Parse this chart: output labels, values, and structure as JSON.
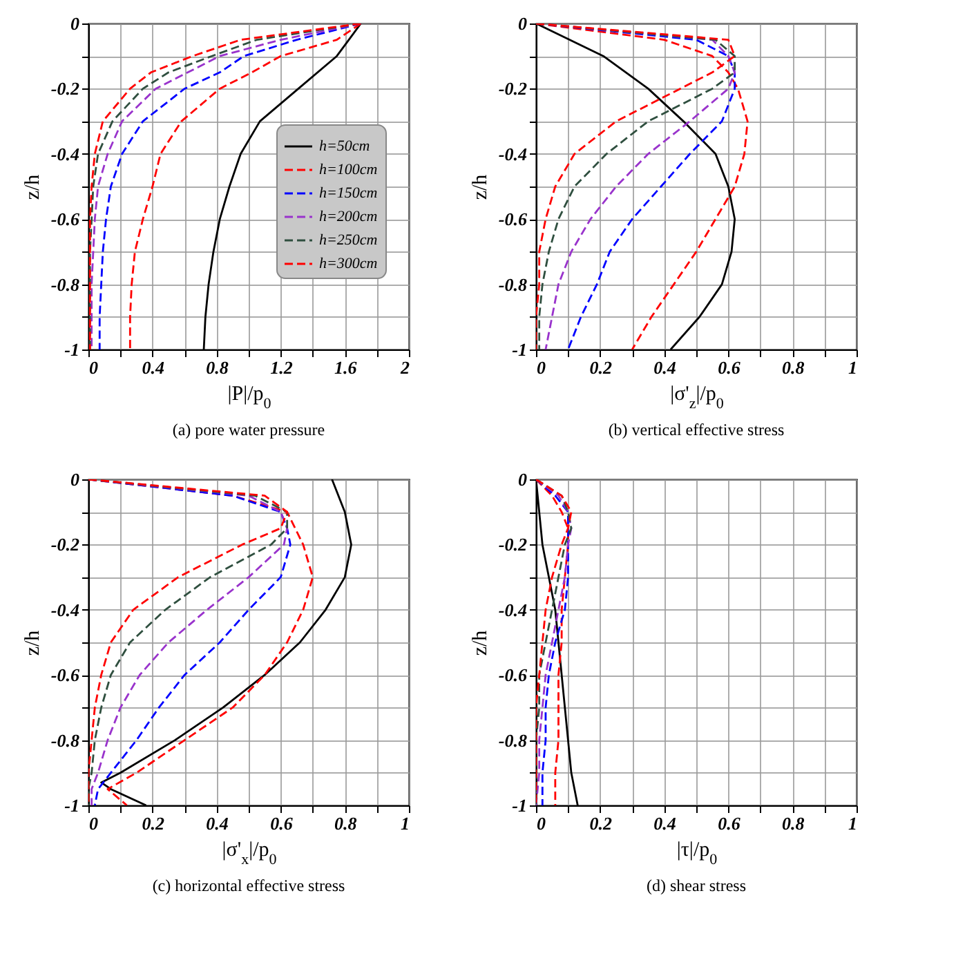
{
  "chart_data": [
    {
      "type": "line",
      "title": "(a) pore water pressure",
      "xlabel": "|P|/p$_{0}$",
      "ylabel": "z/h",
      "xlim": [
        0,
        2
      ],
      "ylim": [
        -1,
        0
      ],
      "xticks": [
        0,
        {
          "value": 0.2,
          "label": null
        },
        0.4,
        {
          "value": 0.6,
          "label": null
        },
        0.8,
        {
          "value": 1.0,
          "label": null
        },
        1.2,
        {
          "value": 1.4,
          "label": null
        },
        1.6,
        {
          "value": 1.8,
          "label": null
        },
        2
      ],
      "yticks": [
        -1,
        {
          "value": -0.9,
          "label": null
        },
        -0.8,
        {
          "value": -0.7,
          "label": null
        },
        -0.6,
        {
          "value": -0.5,
          "label": null
        },
        -0.4,
        {
          "value": -0.3,
          "label": null
        },
        -0.2,
        {
          "value": -0.1,
          "label": null
        },
        0
      ],
      "grid": true,
      "legend": "right",
      "series": [
        {
          "name": "h=50cm",
          "color": "#000000",
          "line_style": "solid",
          "x": [
            1.7,
            1.55,
            1.31,
            1.07,
            0.95,
            0.88,
            0.82,
            0.78,
            0.75,
            0.73,
            0.72
          ],
          "values": [
            0,
            -0.1,
            -0.2,
            -0.3,
            -0.4,
            -0.5,
            -0.6,
            -0.7,
            -0.8,
            -0.9,
            -1
          ]
        },
        {
          "name": "h=100cm",
          "color": "#ff0000",
          "line_style": "dashed",
          "x": [
            1.7,
            1.55,
            1.2,
            1.02,
            0.82,
            0.58,
            0.45,
            0.4,
            0.34,
            0.29,
            0.27,
            0.26,
            0.26
          ],
          "values": [
            0,
            -0.05,
            -0.1,
            -0.15,
            -0.2,
            -0.3,
            -0.4,
            -0.5,
            -0.6,
            -0.7,
            -0.8,
            -0.9,
            -1
          ]
        },
        {
          "name": "h=150cm",
          "color": "#0000ff",
          "line_style": "dashed",
          "x": [
            1.7,
            1.3,
            0.97,
            0.82,
            0.6,
            0.34,
            0.21,
            0.14,
            0.11,
            0.09,
            0.08,
            0.07,
            0.07
          ],
          "values": [
            0,
            -0.05,
            -0.1,
            -0.15,
            -0.2,
            -0.3,
            -0.4,
            -0.5,
            -0.6,
            -0.7,
            -0.8,
            -0.9,
            -1
          ]
        },
        {
          "name": "h=200cm",
          "color": "#9933cc",
          "line_style": "dashed",
          "x": [
            1.7,
            1.2,
            0.82,
            0.62,
            0.42,
            0.21,
            0.12,
            0.06,
            0.04,
            0.03,
            0.02,
            0.02,
            0.02
          ],
          "values": [
            0,
            -0.05,
            -0.1,
            -0.15,
            -0.2,
            -0.3,
            -0.4,
            -0.5,
            -0.6,
            -0.7,
            -0.8,
            -0.9,
            -1
          ]
        },
        {
          "name": "h=250cm",
          "color": "#2f4f3f",
          "line_style": "dashed",
          "x": [
            1.7,
            1.05,
            0.77,
            0.5,
            0.34,
            0.15,
            0.06,
            0.03,
            0.02,
            0.01,
            0.01,
            0.01,
            0.01
          ],
          "values": [
            0,
            -0.05,
            -0.1,
            -0.15,
            -0.2,
            -0.3,
            -0.4,
            -0.5,
            -0.6,
            -0.7,
            -0.8,
            -0.9,
            -1
          ]
        },
        {
          "name": "h=300cm",
          "color": "#ff0000",
          "line_style": "dashed",
          "x": [
            1.7,
            0.95,
            0.65,
            0.39,
            0.26,
            0.09,
            0.04,
            0.02,
            0.01,
            0.01,
            0.01,
            0.01,
            0.01
          ],
          "values": [
            0,
            -0.05,
            -0.1,
            -0.15,
            -0.2,
            -0.3,
            -0.4,
            -0.5,
            -0.6,
            -0.7,
            -0.8,
            -0.9,
            -1
          ]
        }
      ]
    },
    {
      "type": "line",
      "title": "(b) vertical effective stress",
      "xlabel": "|σ'$_{z}$|/p$_{0}$",
      "ylabel": "z/h",
      "xlim": [
        0,
        1
      ],
      "ylim": [
        -1,
        0
      ],
      "xticks": [
        0,
        {
          "value": 0.1,
          "label": null
        },
        0.2,
        {
          "value": 0.3,
          "label": null
        },
        0.4,
        {
          "value": 0.5,
          "label": null
        },
        0.6,
        {
          "value": 0.7,
          "label": null
        },
        0.8,
        {
          "value": 0.9,
          "label": null
        },
        1
      ],
      "yticks": [
        -1,
        {
          "value": -0.9,
          "label": null
        },
        -0.8,
        {
          "value": -0.7,
          "label": null
        },
        -0.6,
        {
          "value": -0.5,
          "label": null
        },
        -0.4,
        {
          "value": -0.3,
          "label": null
        },
        -0.2,
        {
          "value": -0.1,
          "label": null
        },
        0
      ],
      "grid": true,
      "legend": "bottom right",
      "series": [
        {
          "name": "h=50cm",
          "color": "#000000",
          "line_style": "solid",
          "x": [
            0,
            0.21,
            0.35,
            0.46,
            0.56,
            0.6,
            0.62,
            0.61,
            0.58,
            0.51,
            0.42
          ],
          "values": [
            0,
            -0.1,
            -0.2,
            -0.3,
            -0.4,
            -0.5,
            -0.6,
            -0.7,
            -0.8,
            -0.9,
            -1
          ]
        },
        {
          "name": "h=100cm",
          "color": "#ff0000",
          "line_style": "dashed",
          "x": [
            0,
            0.4,
            0.55,
            0.6,
            0.63,
            0.66,
            0.65,
            0.62,
            0.56,
            0.5,
            0.43,
            0.36,
            0.3
          ],
          "values": [
            0,
            -0.05,
            -0.1,
            -0.15,
            -0.2,
            -0.3,
            -0.4,
            -0.5,
            -0.6,
            -0.7,
            -0.8,
            -0.9,
            -1
          ]
        },
        {
          "name": "h=150cm",
          "color": "#0000ff",
          "line_style": "dashed",
          "x": [
            0,
            0.5,
            0.6,
            0.62,
            0.62,
            0.58,
            0.48,
            0.39,
            0.3,
            0.23,
            0.19,
            0.14,
            0.1
          ],
          "values": [
            0,
            -0.05,
            -0.1,
            -0.15,
            -0.2,
            -0.3,
            -0.4,
            -0.5,
            -0.6,
            -0.7,
            -0.8,
            -0.9,
            -1
          ]
        },
        {
          "name": "h=200cm",
          "color": "#9933cc",
          "line_style": "dashed",
          "x": [
            0,
            0.55,
            0.6,
            0.62,
            0.6,
            0.48,
            0.35,
            0.25,
            0.17,
            0.11,
            0.07,
            0.05,
            0.03
          ],
          "values": [
            0,
            -0.05,
            -0.1,
            -0.15,
            -0.2,
            -0.3,
            -0.4,
            -0.5,
            -0.6,
            -0.7,
            -0.8,
            -0.9,
            -1
          ]
        },
        {
          "name": "h=250cm",
          "color": "#2f4f3f",
          "line_style": "dashed",
          "x": [
            0,
            0.56,
            0.62,
            0.62,
            0.55,
            0.35,
            0.22,
            0.12,
            0.07,
            0.04,
            0.02,
            0.01,
            0.01
          ],
          "values": [
            0,
            -0.05,
            -0.1,
            -0.15,
            -0.2,
            -0.3,
            -0.4,
            -0.5,
            -0.6,
            -0.7,
            -0.8,
            -0.9,
            -1
          ]
        },
        {
          "name": "h=300cm",
          "color": "#ff0000",
          "line_style": "dashed",
          "x": [
            0,
            0.6,
            0.62,
            0.55,
            0.45,
            0.25,
            0.12,
            0.06,
            0.03,
            0.01,
            0.01,
            0,
            0
          ],
          "values": [
            0,
            -0.05,
            -0.1,
            -0.15,
            -0.2,
            -0.3,
            -0.4,
            -0.5,
            -0.6,
            -0.7,
            -0.8,
            -0.9,
            -1
          ]
        }
      ]
    },
    {
      "type": "line",
      "title": "(c) horizontal effective stress",
      "xlabel": "|σ'$_{x}$|/p$_{0}$",
      "ylabel": "z/h",
      "xlim": [
        0,
        1
      ],
      "ylim": [
        -1,
        0
      ],
      "xticks": [
        0,
        {
          "value": 0.1,
          "label": null
        },
        0.2,
        {
          "value": 0.3,
          "label": null
        },
        0.4,
        {
          "value": 0.5,
          "label": null
        },
        0.6,
        {
          "value": 0.7,
          "label": null
        },
        0.8,
        {
          "value": 0.9,
          "label": null
        },
        1
      ],
      "yticks": [
        -1,
        {
          "value": -0.9,
          "label": null
        },
        -0.8,
        {
          "value": -0.7,
          "label": null
        },
        -0.6,
        {
          "value": -0.5,
          "label": null
        },
        -0.4,
        {
          "value": -0.3,
          "label": null
        },
        -0.2,
        {
          "value": -0.1,
          "label": null
        },
        0
      ],
      "grid": true,
      "legend": "bottom right",
      "series": [
        {
          "name": "h=50cm",
          "color": "#000000",
          "line_style": "solid",
          "x": [
            0.76,
            0.8,
            0.82,
            0.8,
            0.74,
            0.66,
            0.55,
            0.42,
            0.27,
            0.1,
            0.04,
            0.07,
            0.18
          ],
          "values": [
            0,
            -0.1,
            -0.2,
            -0.3,
            -0.4,
            -0.5,
            -0.6,
            -0.7,
            -0.8,
            -0.9,
            -0.93,
            -0.95,
            -1
          ]
        },
        {
          "name": "h=100cm",
          "color": "#ff0000",
          "line_style": "dashed",
          "x": [
            0,
            0.45,
            0.62,
            0.67,
            0.7,
            0.67,
            0.62,
            0.55,
            0.45,
            0.3,
            0.15,
            0.06,
            0.12
          ],
          "values": [
            0,
            -0.05,
            -0.1,
            -0.2,
            -0.3,
            -0.4,
            -0.5,
            -0.6,
            -0.7,
            -0.8,
            -0.9,
            -0.95,
            -1
          ]
        },
        {
          "name": "h=150cm",
          "color": "#0000ff",
          "line_style": "dashed",
          "x": [
            0,
            0.45,
            0.6,
            0.62,
            0.63,
            0.6,
            0.5,
            0.41,
            0.3,
            0.22,
            0.15,
            0.07,
            0.03,
            0.02
          ],
          "values": [
            0,
            -0.05,
            -0.1,
            -0.15,
            -0.2,
            -0.3,
            -0.4,
            -0.5,
            -0.6,
            -0.7,
            -0.8,
            -0.9,
            -0.95,
            -1
          ]
        },
        {
          "name": "h=200cm",
          "color": "#9933cc",
          "line_style": "dashed",
          "x": [
            0,
            0.5,
            0.6,
            0.62,
            0.61,
            0.5,
            0.37,
            0.25,
            0.16,
            0.1,
            0.06,
            0.03,
            0.01,
            0.01
          ],
          "values": [
            0,
            -0.05,
            -0.1,
            -0.15,
            -0.2,
            -0.3,
            -0.4,
            -0.5,
            -0.6,
            -0.7,
            -0.8,
            -0.9,
            -0.95,
            -1
          ]
        },
        {
          "name": "h=250cm",
          "color": "#2f4f3f",
          "line_style": "dashed",
          "x": [
            0,
            0.52,
            0.62,
            0.62,
            0.57,
            0.38,
            0.24,
            0.13,
            0.07,
            0.04,
            0.02,
            0.01,
            0,
            0
          ],
          "values": [
            0,
            -0.05,
            -0.1,
            -0.15,
            -0.2,
            -0.3,
            -0.4,
            -0.5,
            -0.6,
            -0.7,
            -0.8,
            -0.9,
            -0.95,
            -1
          ]
        },
        {
          "name": "h=300cm",
          "color": "#ff0000",
          "line_style": "dashed",
          "x": [
            0,
            0.55,
            0.62,
            0.6,
            0.48,
            0.28,
            0.14,
            0.07,
            0.04,
            0.02,
            0.01,
            0,
            0,
            0
          ],
          "values": [
            0,
            -0.05,
            -0.1,
            -0.15,
            -0.2,
            -0.3,
            -0.4,
            -0.5,
            -0.6,
            -0.7,
            -0.8,
            -0.9,
            -0.95,
            -1
          ]
        }
      ]
    },
    {
      "type": "line",
      "title": "(d) shear stress",
      "xlabel": "|τ|/p$_{0}$",
      "ylabel": "z/h",
      "xlim": [
        0,
        1
      ],
      "ylim": [
        -1,
        0
      ],
      "xticks": [
        0,
        {
          "value": 0.1,
          "label": null
        },
        0.2,
        {
          "value": 0.3,
          "label": null
        },
        0.4,
        {
          "value": 0.5,
          "label": null
        },
        0.6,
        {
          "value": 0.7,
          "label": null
        },
        0.8,
        {
          "value": 0.9,
          "label": null
        },
        1
      ],
      "yticks": [
        -1,
        {
          "value": -0.9,
          "label": null
        },
        -0.8,
        {
          "value": -0.7,
          "label": null
        },
        -0.6,
        {
          "value": -0.5,
          "label": null
        },
        -0.4,
        {
          "value": -0.3,
          "label": null
        },
        -0.2,
        {
          "value": -0.1,
          "label": null
        },
        0
      ],
      "grid": true,
      "legend": "center",
      "series": [
        {
          "name": "h=50cm",
          "color": "#000000",
          "line_style": "solid",
          "x": [
            0,
            0.01,
            0.02,
            0.04,
            0.06,
            0.07,
            0.08,
            0.09,
            0.1,
            0.11,
            0.13
          ],
          "values": [
            0,
            -0.1,
            -0.2,
            -0.3,
            -0.4,
            -0.5,
            -0.6,
            -0.7,
            -0.8,
            -0.9,
            -1
          ]
        },
        {
          "name": "h=100cm",
          "color": "#ff0000",
          "line_style": "dashed",
          "x": [
            0,
            0.05,
            0.08,
            0.1,
            0.1,
            0.09,
            0.08,
            0.08,
            0.07,
            0.07,
            0.07,
            0.06,
            0.06
          ],
          "values": [
            0,
            -0.05,
            -0.1,
            -0.15,
            -0.2,
            -0.3,
            -0.4,
            -0.5,
            -0.6,
            -0.7,
            -0.8,
            -0.9,
            -1
          ]
        },
        {
          "name": "h=150cm",
          "color": "#0000ff",
          "line_style": "dashed",
          "x": [
            0,
            0.06,
            0.1,
            0.1,
            0.1,
            0.1,
            0.09,
            0.06,
            0.04,
            0.03,
            0.03,
            0.02,
            0.02
          ],
          "values": [
            0,
            -0.05,
            -0.1,
            -0.15,
            -0.2,
            -0.3,
            -0.4,
            -0.5,
            -0.6,
            -0.7,
            -0.8,
            -0.9,
            -1
          ]
        },
        {
          "name": "h=200cm",
          "color": "#9933cc",
          "line_style": "dashed",
          "x": [
            0,
            0.07,
            0.1,
            0.11,
            0.1,
            0.09,
            0.07,
            0.05,
            0.03,
            0.02,
            0.01,
            0.01,
            0
          ],
          "values": [
            0,
            -0.05,
            -0.1,
            -0.15,
            -0.2,
            -0.3,
            -0.4,
            -0.5,
            -0.6,
            -0.7,
            -0.8,
            -0.9,
            -1
          ]
        },
        {
          "name": "h=250cm",
          "color": "#2f4f3f",
          "line_style": "dashed",
          "x": [
            0,
            0.08,
            0.1,
            0.11,
            0.09,
            0.07,
            0.05,
            0.03,
            0.01,
            0.01,
            0,
            0,
            0
          ],
          "values": [
            0,
            -0.05,
            -0.1,
            -0.15,
            -0.2,
            -0.3,
            -0.4,
            -0.5,
            -0.6,
            -0.7,
            -0.8,
            -0.9,
            -1
          ]
        },
        {
          "name": "h=300cm",
          "color": "#ff0000",
          "line_style": "dashed",
          "x": [
            0,
            0.08,
            0.11,
            0.1,
            0.08,
            0.05,
            0.03,
            0.02,
            0.01,
            0,
            0,
            0,
            0
          ],
          "values": [
            0,
            -0.05,
            -0.1,
            -0.15,
            -0.2,
            -0.3,
            -0.4,
            -0.5,
            -0.6,
            -0.7,
            -0.8,
            -0.9,
            -1
          ]
        }
      ]
    }
  ]
}
